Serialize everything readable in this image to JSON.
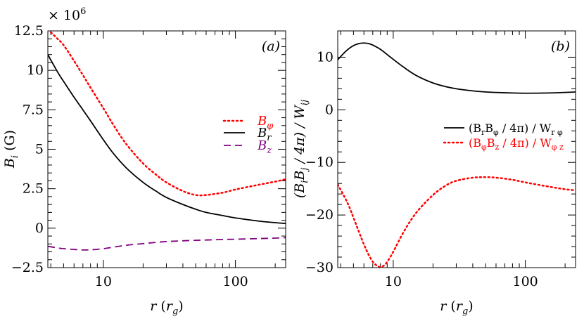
{
  "chart_data": [
    {
      "panel_label": "(a)",
      "type": "line",
      "x_scale": "log",
      "xlim": [
        3.8,
        240
      ],
      "ylim": [
        -2.5,
        12.5
      ],
      "xlabel_main": "r",
      "xlabel_sub": "g",
      "ylabel_main": "B",
      "ylabel_sub": "i",
      "ylabel_unit": "(G)",
      "y_multiplier_base": "× 10",
      "y_multiplier_exp": "6",
      "x_ticks": [
        10,
        100
      ],
      "x_tick_labels": [
        "10",
        "100"
      ],
      "y_ticks": [
        -2.5,
        0,
        2.5,
        5,
        7.5,
        10,
        12.5
      ],
      "y_tick_labels": [
        "−2.5",
        "0",
        "2.5",
        "5",
        "7.5",
        "10",
        "12.5"
      ],
      "legend_position": "right",
      "series": [
        {
          "name_main": "B",
          "name_sub": "φ",
          "color": "#ff0000",
          "style": "dotted",
          "x": [
            3.8,
            4.5,
            5,
            6,
            7,
            8,
            10,
            12,
            15,
            20,
            25,
            30,
            40,
            50,
            60,
            80,
            100,
            150,
            200,
            240
          ],
          "y": [
            12.6,
            12.0,
            11.6,
            10.6,
            9.7,
            8.9,
            7.6,
            6.5,
            5.3,
            4.1,
            3.4,
            2.9,
            2.35,
            2.1,
            2.1,
            2.25,
            2.45,
            2.75,
            2.95,
            3.1
          ]
        },
        {
          "name_main": "B",
          "name_sub": "r",
          "color": "#000000",
          "style": "solid",
          "x": [
            3.8,
            4.5,
            5,
            6,
            7,
            8,
            10,
            12,
            15,
            20,
            25,
            30,
            40,
            50,
            60,
            80,
            100,
            150,
            200,
            240
          ],
          "y": [
            11.0,
            9.9,
            9.3,
            8.3,
            7.5,
            6.8,
            5.6,
            4.7,
            3.8,
            2.9,
            2.35,
            1.95,
            1.5,
            1.2,
            1.0,
            0.8,
            0.65,
            0.45,
            0.35,
            0.3
          ]
        },
        {
          "name_main": "B",
          "name_sub": "z",
          "color": "#800080",
          "style": "dashed",
          "x": [
            3.8,
            4.5,
            5,
            6,
            7,
            8,
            10,
            12,
            15,
            20,
            25,
            30,
            40,
            50,
            60,
            80,
            100,
            150,
            200,
            240
          ],
          "y": [
            -1.15,
            -1.25,
            -1.3,
            -1.35,
            -1.38,
            -1.37,
            -1.3,
            -1.2,
            -1.08,
            -0.98,
            -0.9,
            -0.85,
            -0.8,
            -0.77,
            -0.75,
            -0.72,
            -0.7,
            -0.66,
            -0.63,
            -0.6
          ]
        }
      ]
    },
    {
      "panel_label": "(b)",
      "type": "line",
      "x_scale": "log",
      "xlim": [
        3.8,
        240
      ],
      "ylim": [
        -30,
        15
      ],
      "xlabel_main": "r",
      "xlabel_sub": "g",
      "ylabel_text": "(B",
      "ylabel_sub1": "i",
      "ylabel_mid": "B",
      "ylabel_sub2": "j",
      "ylabel_tail": " / 4π) / W",
      "ylabel_sub3": "ij",
      "x_ticks": [
        10,
        100
      ],
      "x_tick_labels": [
        "10",
        "100"
      ],
      "y_ticks": [
        -30,
        -20,
        -10,
        0,
        10
      ],
      "y_tick_labels": [
        "−30",
        "−20",
        "−10",
        "0",
        "10"
      ],
      "legend_position": "right",
      "series": [
        {
          "label_a": "(B",
          "label_a_sub": "r",
          "label_b": "B",
          "label_b_sub": "φ",
          "label_c": " / 4π) / W",
          "label_c_sub": "r φ",
          "color": "#000000",
          "style": "solid",
          "x": [
            3.8,
            4.2,
            4.6,
            5,
            5.5,
            6,
            6.5,
            7,
            8,
            9,
            10,
            12,
            15,
            20,
            25,
            30,
            40,
            50,
            60,
            80,
            100,
            150,
            200,
            240
          ],
          "y": [
            9.5,
            10.7,
            11.6,
            12.2,
            12.6,
            12.7,
            12.6,
            12.3,
            11.5,
            10.5,
            9.6,
            8.1,
            6.5,
            5.1,
            4.4,
            4.0,
            3.6,
            3.4,
            3.3,
            3.2,
            3.15,
            3.2,
            3.3,
            3.4
          ]
        },
        {
          "label_a": "(B",
          "label_a_sub": "φ",
          "label_b": "B",
          "label_b_sub": "z",
          "label_c": " / 4π) / W",
          "label_c_sub": "φ z",
          "color": "#ff0000",
          "style": "dotted",
          "x": [
            3.8,
            4.2,
            4.6,
            5,
            5.5,
            6,
            6.5,
            7,
            7.5,
            8,
            8.5,
            9,
            10,
            12,
            15,
            20,
            25,
            30,
            40,
            50,
            60,
            80,
            100,
            150,
            200,
            240
          ],
          "y": [
            -14.2,
            -16.2,
            -18.2,
            -20.5,
            -23.2,
            -25.6,
            -27.5,
            -28.9,
            -29.6,
            -29.9,
            -29.6,
            -28.9,
            -27.0,
            -23.2,
            -19.5,
            -16.2,
            -14.4,
            -13.5,
            -12.9,
            -12.8,
            -12.9,
            -13.3,
            -13.8,
            -14.6,
            -15.1,
            -15.3
          ]
        }
      ]
    }
  ]
}
